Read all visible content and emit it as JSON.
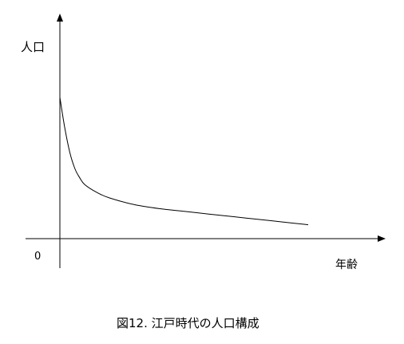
{
  "chart_data": {
    "type": "line",
    "title": "",
    "ylabel": "人口",
    "xlabel": "年齢",
    "origin_label": "0",
    "caption": "図12. 江戸時代の人口構成",
    "xlim": [
      0,
      100
    ],
    "ylim": [
      0,
      100
    ],
    "grid": false,
    "legend": "none",
    "series": [
      {
        "x": [
          0,
          2,
          4,
          6,
          8,
          10,
          15,
          20,
          30,
          40,
          50,
          60,
          70,
          80,
          90,
          100
        ],
        "y": [
          100,
          77,
          59,
          47,
          40,
          35,
          29,
          25,
          20,
          17,
          15,
          13,
          11,
          9,
          7,
          5
        ]
      }
    ],
    "colors": {
      "line": "#000000",
      "axis": "#000000",
      "background": "#ffffff"
    }
  }
}
